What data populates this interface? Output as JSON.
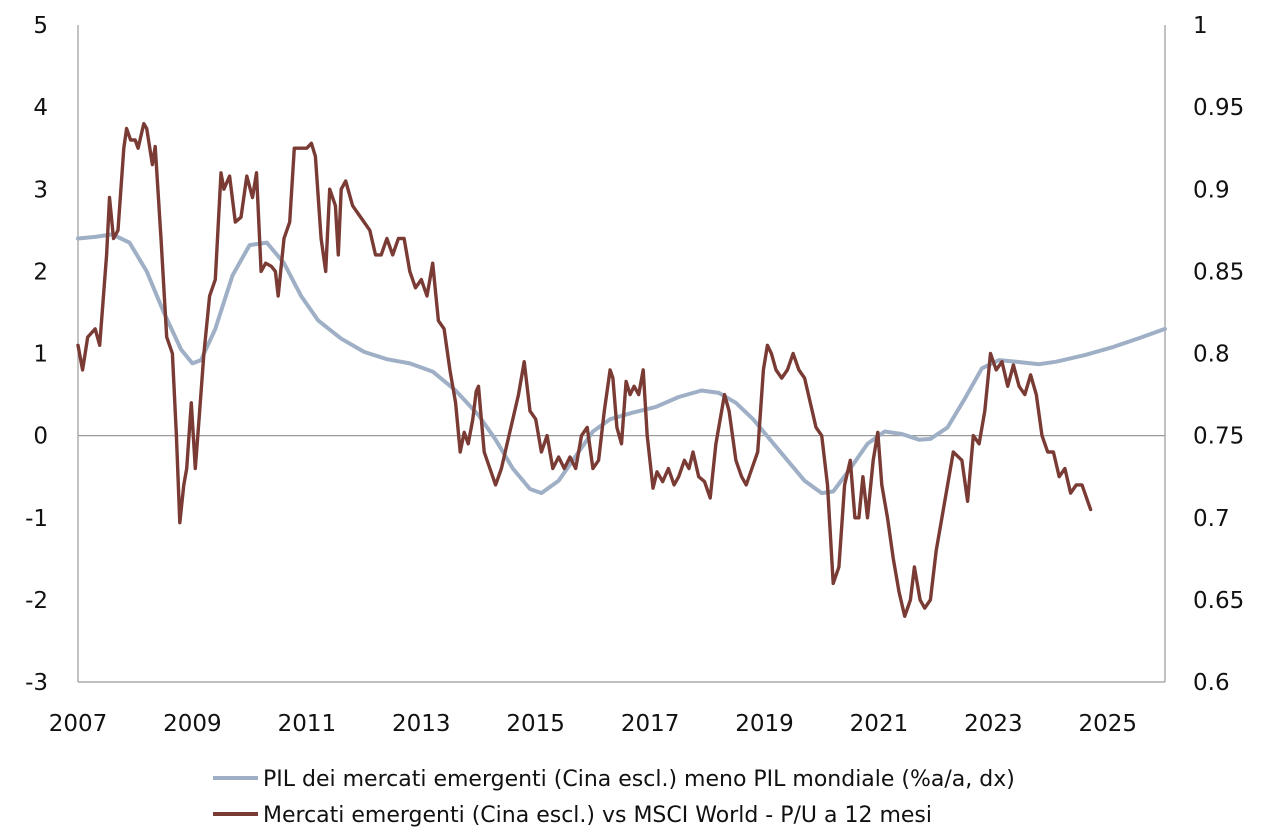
{
  "chart_data": {
    "type": "line",
    "x_range": [
      2007,
      2026
    ],
    "x_ticks": [
      "2007",
      "2009",
      "2011",
      "2013",
      "2015",
      "2017",
      "2019",
      "2021",
      "2023",
      "2025"
    ],
    "left_axis": {
      "ylim": [
        -3,
        5
      ],
      "ticks": [
        "-3",
        "-2",
        "-1",
        "0",
        "1",
        "2",
        "3",
        "4",
        "5"
      ]
    },
    "right_axis": {
      "ylim": [
        0.6,
        1.0
      ],
      "ticks": [
        "0.6",
        "0.65",
        "0.7",
        "0.75",
        "0.8",
        "0.85",
        "0.9",
        "0.95",
        "1"
      ]
    },
    "series": [
      {
        "name": "PIL dei mercati emergenti (Cina escl.) meno PIL mondiale (%a/a, dx)",
        "axis": "left",
        "color": "#9fb0c6",
        "points": [
          [
            2007.0,
            2.4
          ],
          [
            2007.3,
            2.42
          ],
          [
            2007.6,
            2.45
          ],
          [
            2007.9,
            2.35
          ],
          [
            2008.2,
            2.0
          ],
          [
            2008.5,
            1.5
          ],
          [
            2008.8,
            1.05
          ],
          [
            2009.0,
            0.88
          ],
          [
            2009.15,
            0.92
          ],
          [
            2009.4,
            1.3
          ],
          [
            2009.7,
            1.95
          ],
          [
            2010.0,
            2.32
          ],
          [
            2010.3,
            2.35
          ],
          [
            2010.6,
            2.1
          ],
          [
            2010.9,
            1.7
          ],
          [
            2011.2,
            1.4
          ],
          [
            2011.6,
            1.18
          ],
          [
            2012.0,
            1.02
          ],
          [
            2012.4,
            0.93
          ],
          [
            2012.8,
            0.88
          ],
          [
            2013.2,
            0.78
          ],
          [
            2013.6,
            0.55
          ],
          [
            2014.0,
            0.25
          ],
          [
            2014.3,
            -0.05
          ],
          [
            2014.6,
            -0.4
          ],
          [
            2014.9,
            -0.65
          ],
          [
            2015.1,
            -0.7
          ],
          [
            2015.4,
            -0.55
          ],
          [
            2015.7,
            -0.25
          ],
          [
            2016.0,
            0.05
          ],
          [
            2016.3,
            0.2
          ],
          [
            2016.7,
            0.28
          ],
          [
            2017.1,
            0.35
          ],
          [
            2017.5,
            0.47
          ],
          [
            2017.9,
            0.55
          ],
          [
            2018.2,
            0.52
          ],
          [
            2018.5,
            0.4
          ],
          [
            2018.8,
            0.2
          ],
          [
            2019.1,
            -0.05
          ],
          [
            2019.4,
            -0.3
          ],
          [
            2019.7,
            -0.55
          ],
          [
            2020.0,
            -0.7
          ],
          [
            2020.2,
            -0.68
          ],
          [
            2020.5,
            -0.4
          ],
          [
            2020.8,
            -0.1
          ],
          [
            2021.1,
            0.05
          ],
          [
            2021.4,
            0.02
          ],
          [
            2021.7,
            -0.05
          ],
          [
            2021.9,
            -0.04
          ],
          [
            2022.2,
            0.1
          ],
          [
            2022.5,
            0.45
          ],
          [
            2022.8,
            0.82
          ],
          [
            2023.1,
            0.92
          ],
          [
            2023.4,
            0.9
          ],
          [
            2023.8,
            0.87
          ],
          [
            2024.1,
            0.9
          ],
          [
            2024.6,
            0.98
          ],
          [
            2025.1,
            1.08
          ],
          [
            2025.6,
            1.2
          ],
          [
            2026.0,
            1.3
          ]
        ]
      },
      {
        "name": "Mercati emergenti (Cina escl.) vs MSCI World - P/U a 12 mesi",
        "axis": "right",
        "color": "#7a3b35",
        "points": [
          [
            2007.0,
            0.805
          ],
          [
            2007.08,
            0.79
          ],
          [
            2007.17,
            0.81
          ],
          [
            2007.3,
            0.815
          ],
          [
            2007.38,
            0.805
          ],
          [
            2007.5,
            0.86
          ],
          [
            2007.55,
            0.895
          ],
          [
            2007.62,
            0.87
          ],
          [
            2007.7,
            0.875
          ],
          [
            2007.8,
            0.925
          ],
          [
            2007.85,
            0.937
          ],
          [
            2007.92,
            0.93
          ],
          [
            2008.0,
            0.93
          ],
          [
            2008.05,
            0.925
          ],
          [
            2008.15,
            0.94
          ],
          [
            2008.2,
            0.937
          ],
          [
            2008.3,
            0.915
          ],
          [
            2008.35,
            0.926
          ],
          [
            2008.45,
            0.87
          ],
          [
            2008.55,
            0.81
          ],
          [
            2008.65,
            0.8
          ],
          [
            2008.72,
            0.75
          ],
          [
            2008.78,
            0.697
          ],
          [
            2008.85,
            0.72
          ],
          [
            2008.9,
            0.73
          ],
          [
            2008.98,
            0.77
          ],
          [
            2009.05,
            0.73
          ],
          [
            2009.12,
            0.762
          ],
          [
            2009.2,
            0.8
          ],
          [
            2009.3,
            0.835
          ],
          [
            2009.4,
            0.845
          ],
          [
            2009.5,
            0.91
          ],
          [
            2009.55,
            0.9
          ],
          [
            2009.65,
            0.908
          ],
          [
            2009.75,
            0.88
          ],
          [
            2009.85,
            0.883
          ],
          [
            2009.95,
            0.908
          ],
          [
            2010.05,
            0.895
          ],
          [
            2010.12,
            0.91
          ],
          [
            2010.2,
            0.85
          ],
          [
            2010.28,
            0.855
          ],
          [
            2010.38,
            0.853
          ],
          [
            2010.45,
            0.85
          ],
          [
            2010.5,
            0.835
          ],
          [
            2010.6,
            0.87
          ],
          [
            2010.7,
            0.88
          ],
          [
            2010.78,
            0.925
          ],
          [
            2010.9,
            0.925
          ],
          [
            2011.0,
            0.925
          ],
          [
            2011.08,
            0.928
          ],
          [
            2011.15,
            0.92
          ],
          [
            2011.25,
            0.87
          ],
          [
            2011.33,
            0.85
          ],
          [
            2011.4,
            0.9
          ],
          [
            2011.5,
            0.89
          ],
          [
            2011.55,
            0.86
          ],
          [
            2011.6,
            0.9
          ],
          [
            2011.68,
            0.905
          ],
          [
            2011.8,
            0.89
          ],
          [
            2011.9,
            0.885
          ],
          [
            2012.0,
            0.88
          ],
          [
            2012.1,
            0.875
          ],
          [
            2012.2,
            0.86
          ],
          [
            2012.3,
            0.86
          ],
          [
            2012.4,
            0.87
          ],
          [
            2012.5,
            0.86
          ],
          [
            2012.6,
            0.87
          ],
          [
            2012.7,
            0.87
          ],
          [
            2012.8,
            0.85
          ],
          [
            2012.9,
            0.84
          ],
          [
            2013.0,
            0.845
          ],
          [
            2013.1,
            0.835
          ],
          [
            2013.2,
            0.855
          ],
          [
            2013.3,
            0.82
          ],
          [
            2013.4,
            0.815
          ],
          [
            2013.5,
            0.79
          ],
          [
            2013.6,
            0.77
          ],
          [
            2013.68,
            0.74
          ],
          [
            2013.75,
            0.752
          ],
          [
            2013.82,
            0.745
          ],
          [
            2013.9,
            0.76
          ],
          [
            2013.96,
            0.777
          ],
          [
            2014.0,
            0.78
          ],
          [
            2014.1,
            0.74
          ],
          [
            2014.2,
            0.73
          ],
          [
            2014.3,
            0.72
          ],
          [
            2014.4,
            0.73
          ],
          [
            2014.5,
            0.745
          ],
          [
            2014.6,
            0.76
          ],
          [
            2014.7,
            0.775
          ],
          [
            2014.8,
            0.795
          ],
          [
            2014.9,
            0.765
          ],
          [
            2015.0,
            0.76
          ],
          [
            2015.1,
            0.74
          ],
          [
            2015.2,
            0.75
          ],
          [
            2015.3,
            0.73
          ],
          [
            2015.4,
            0.737
          ],
          [
            2015.5,
            0.73
          ],
          [
            2015.6,
            0.737
          ],
          [
            2015.7,
            0.73
          ],
          [
            2015.8,
            0.75
          ],
          [
            2015.9,
            0.755
          ],
          [
            2016.0,
            0.73
          ],
          [
            2016.1,
            0.735
          ],
          [
            2016.2,
            0.765
          ],
          [
            2016.3,
            0.79
          ],
          [
            2016.35,
            0.785
          ],
          [
            2016.42,
            0.755
          ],
          [
            2016.5,
            0.745
          ],
          [
            2016.58,
            0.783
          ],
          [
            2016.65,
            0.775
          ],
          [
            2016.72,
            0.78
          ],
          [
            2016.8,
            0.775
          ],
          [
            2016.88,
            0.79
          ],
          [
            2016.95,
            0.75
          ],
          [
            2017.05,
            0.718
          ],
          [
            2017.12,
            0.728
          ],
          [
            2017.22,
            0.722
          ],
          [
            2017.32,
            0.73
          ],
          [
            2017.42,
            0.72
          ],
          [
            2017.5,
            0.725
          ],
          [
            2017.6,
            0.735
          ],
          [
            2017.68,
            0.73
          ],
          [
            2017.75,
            0.74
          ],
          [
            2017.85,
            0.725
          ],
          [
            2017.95,
            0.722
          ],
          [
            2018.05,
            0.712
          ],
          [
            2018.15,
            0.745
          ],
          [
            2018.3,
            0.775
          ],
          [
            2018.38,
            0.765
          ],
          [
            2018.5,
            0.735
          ],
          [
            2018.6,
            0.725
          ],
          [
            2018.68,
            0.72
          ],
          [
            2018.78,
            0.73
          ],
          [
            2018.88,
            0.74
          ],
          [
            2018.98,
            0.79
          ],
          [
            2019.05,
            0.805
          ],
          [
            2019.12,
            0.8
          ],
          [
            2019.2,
            0.79
          ],
          [
            2019.3,
            0.785
          ],
          [
            2019.4,
            0.79
          ],
          [
            2019.5,
            0.8
          ],
          [
            2019.6,
            0.79
          ],
          [
            2019.7,
            0.785
          ],
          [
            2019.8,
            0.77
          ],
          [
            2019.9,
            0.755
          ],
          [
            2020.0,
            0.75
          ],
          [
            2020.1,
            0.72
          ],
          [
            2020.2,
            0.66
          ],
          [
            2020.3,
            0.67
          ],
          [
            2020.4,
            0.72
          ],
          [
            2020.5,
            0.735
          ],
          [
            2020.58,
            0.7
          ],
          [
            2020.65,
            0.7
          ],
          [
            2020.72,
            0.725
          ],
          [
            2020.8,
            0.7
          ],
          [
            2020.9,
            0.735
          ],
          [
            2020.98,
            0.752
          ],
          [
            2021.05,
            0.72
          ],
          [
            2021.15,
            0.7
          ],
          [
            2021.25,
            0.675
          ],
          [
            2021.35,
            0.655
          ],
          [
            2021.45,
            0.64
          ],
          [
            2021.55,
            0.65
          ],
          [
            2021.62,
            0.67
          ],
          [
            2021.72,
            0.65
          ],
          [
            2021.8,
            0.645
          ],
          [
            2021.9,
            0.65
          ],
          [
            2022.0,
            0.68
          ],
          [
            2022.1,
            0.7
          ],
          [
            2022.2,
            0.72
          ],
          [
            2022.3,
            0.74
          ],
          [
            2022.45,
            0.735
          ],
          [
            2022.55,
            0.71
          ],
          [
            2022.65,
            0.75
          ],
          [
            2022.75,
            0.745
          ],
          [
            2022.85,
            0.765
          ],
          [
            2022.95,
            0.8
          ],
          [
            2023.05,
            0.79
          ],
          [
            2023.15,
            0.795
          ],
          [
            2023.25,
            0.78
          ],
          [
            2023.35,
            0.793
          ],
          [
            2023.45,
            0.78
          ],
          [
            2023.55,
            0.775
          ],
          [
            2023.65,
            0.787
          ],
          [
            2023.75,
            0.775
          ],
          [
            2023.85,
            0.75
          ],
          [
            2023.95,
            0.74
          ],
          [
            2024.05,
            0.74
          ],
          [
            2024.15,
            0.725
          ],
          [
            2024.25,
            0.73
          ],
          [
            2024.35,
            0.715
          ],
          [
            2024.45,
            0.72
          ],
          [
            2024.55,
            0.72
          ],
          [
            2024.7,
            0.705
          ]
        ]
      }
    ],
    "legend_position": "bottom"
  }
}
